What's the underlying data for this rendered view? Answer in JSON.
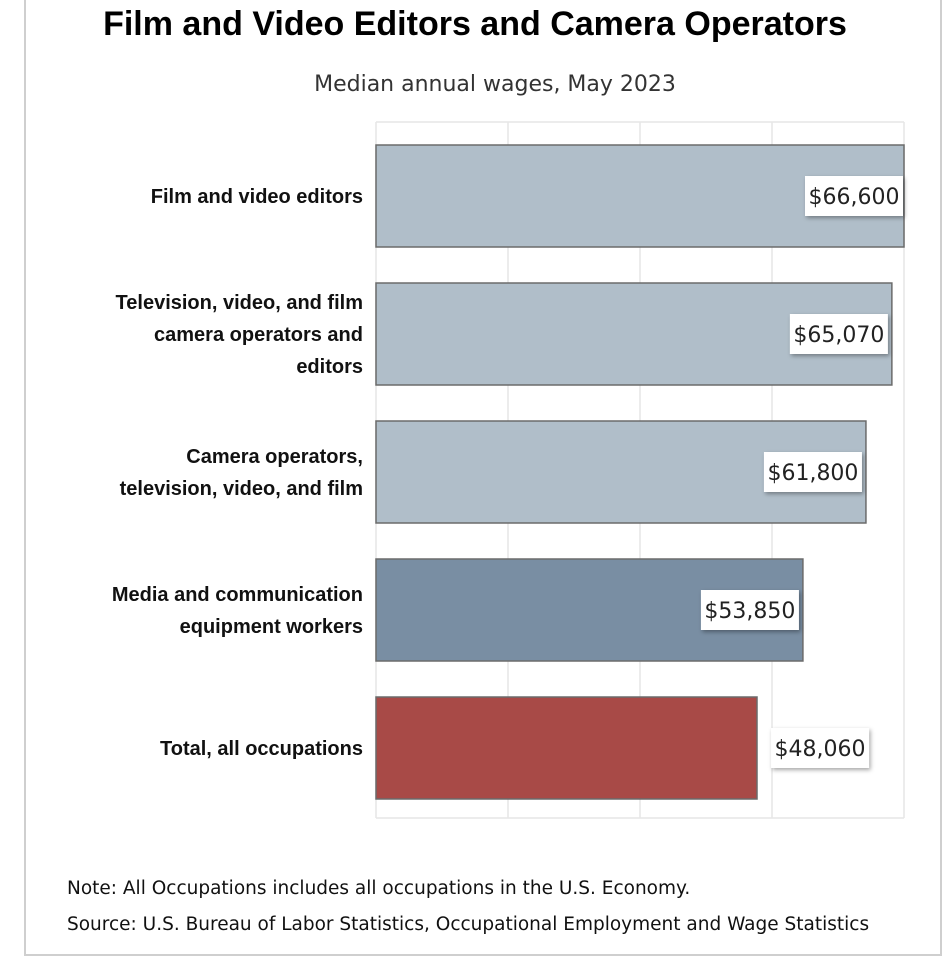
{
  "chart_data": {
    "type": "bar",
    "orientation": "horizontal",
    "title": "Film and Video Editors and Camera Operators",
    "subtitle": "Median annual wages, May 2023",
    "categories": [
      "Film and video editors",
      "Television, video, and film camera operators and editors",
      "Camera operators, television, video, and film",
      "Media and communication equipment workers",
      "Total, all occupations"
    ],
    "category_lines": [
      [
        "Film and video editors"
      ],
      [
        "Television, video, and film",
        "camera operators and",
        "editors"
      ],
      [
        "Camera operators,",
        "television, video, and film"
      ],
      [
        "Media and communication",
        "equipment workers"
      ],
      [
        "Total, all occupations"
      ]
    ],
    "values": [
      66600,
      65070,
      61800,
      53850,
      48060
    ],
    "value_labels": [
      "$66,600",
      "$65,070",
      "$61,800",
      "$53,850",
      "$48,060"
    ],
    "colors": [
      "#b0bec9",
      "#b0bec9",
      "#b0bec9",
      "#798ea3",
      "#a84a47"
    ],
    "xlim": [
      0,
      66600
    ],
    "grid": true,
    "legend": "none"
  },
  "note": "Note: All Occupations includes all occupations in the U.S. Economy.",
  "source": "Source: U.S. Bureau of Labor Statistics, Occupational Employment and Wage Statistics"
}
